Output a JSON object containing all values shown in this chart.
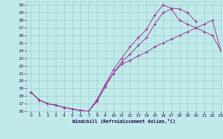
{
  "bg_color": "#c0eaea",
  "grid_color": "#99cccc",
  "line_color": "#993399",
  "xlabel": "Windchill (Refroidissement éolien,°C)",
  "xlim": [
    -0.5,
    23
  ],
  "ylim": [
    16,
    30.5
  ],
  "xticks": [
    0,
    1,
    2,
    3,
    4,
    5,
    6,
    7,
    8,
    9,
    10,
    11,
    12,
    13,
    14,
    15,
    16,
    17,
    18,
    19,
    20,
    21,
    22,
    23
  ],
  "yticks": [
    16,
    17,
    18,
    19,
    20,
    21,
    22,
    23,
    24,
    25,
    26,
    27,
    28,
    29,
    30
  ],
  "line1_x": [
    0,
    1,
    2,
    3,
    4,
    5,
    6,
    7,
    8,
    9,
    10,
    11,
    12,
    13,
    14,
    15,
    16,
    17,
    18,
    19,
    20
  ],
  "line1_y": [
    18.5,
    17.5,
    17.0,
    16.8,
    16.5,
    16.3,
    16.1,
    16.0,
    17.5,
    19.5,
    21.5,
    23.0,
    24.5,
    25.7,
    26.8,
    28.7,
    30.0,
    29.6,
    29.5,
    29.0,
    27.8
  ],
  "line2_x": [
    0,
    1,
    2,
    3,
    4,
    5,
    6,
    7,
    8,
    9,
    10,
    11,
    12,
    13,
    14,
    15,
    16,
    17,
    18,
    19,
    20,
    21,
    22,
    23
  ],
  "line2_y": [
    18.5,
    17.5,
    17.0,
    16.8,
    16.5,
    16.3,
    16.1,
    16.0,
    17.3,
    19.2,
    21.0,
    22.2,
    22.7,
    23.3,
    23.8,
    24.5,
    25.0,
    25.5,
    26.0,
    26.5,
    27.0,
    27.5,
    28.0,
    24.0
  ],
  "line3_x": [
    0,
    1,
    2,
    3,
    4,
    5,
    6,
    7,
    8,
    9,
    10,
    11,
    12,
    13,
    14,
    15,
    16,
    17,
    18,
    19,
    20,
    21,
    22,
    23
  ],
  "line3_y": [
    18.5,
    17.5,
    17.0,
    16.8,
    16.5,
    16.3,
    16.1,
    16.0,
    17.5,
    19.5,
    21.0,
    22.5,
    23.5,
    24.7,
    25.7,
    27.5,
    29.0,
    29.5,
    28.0,
    27.5,
    27.0,
    26.5,
    26.0,
    24.0
  ]
}
